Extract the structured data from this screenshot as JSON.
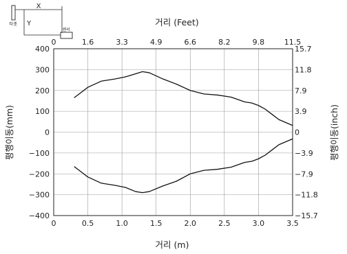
{
  "chart_data": {
    "type": "line",
    "xlabel_bottom": "거리 (m)",
    "xlabel_top": "거리 (Feet)",
    "ylabel_left": "평행이동(mm)",
    "ylabel_right": "평행이동(inch)",
    "xlim": [
      0,
      3.5
    ],
    "ylim": [
      -400,
      400
    ],
    "grid": true,
    "x_ticks_bottom": [
      "0",
      "0.5",
      "1.0",
      "1.5",
      "2.0",
      "2.5",
      "3.0",
      "3.5"
    ],
    "x_ticks_top": [
      "0",
      "1.6",
      "3.3",
      "4.9",
      "6.6",
      "8.2",
      "9.8",
      "11.5"
    ],
    "y_ticks_left": [
      "400",
      "300",
      "200",
      "100",
      "0",
      "−100",
      "−200",
      "−300",
      "−400"
    ],
    "y_ticks_right": [
      "15.7",
      "11.8",
      "7.9",
      "3.9",
      "0",
      "−3.9",
      "−7.9",
      "−11.8",
      "−15.7"
    ],
    "x_tick_values": [
      0,
      0.5,
      1.0,
      1.5,
      2.0,
      2.5,
      3.0,
      3.5
    ],
    "y_tick_values": [
      400,
      300,
      200,
      100,
      0,
      -100,
      -200,
      -300,
      -400
    ],
    "series": [
      {
        "x": [
          0.3,
          0.5,
          0.7,
          0.9,
          1.05,
          1.2,
          1.3,
          1.4,
          1.6,
          1.8,
          2.0,
          2.2,
          2.4,
          2.6,
          2.8,
          2.9,
          3.0,
          3.1,
          3.2,
          3.3,
          3.5
        ],
        "y": [
          165,
          215,
          245,
          255,
          265,
          280,
          290,
          285,
          255,
          230,
          200,
          183,
          178,
          168,
          145,
          140,
          128,
          110,
          85,
          60,
          32
        ]
      },
      {
        "x": [
          0.3,
          0.5,
          0.7,
          0.9,
          1.05,
          1.2,
          1.3,
          1.4,
          1.6,
          1.8,
          2.0,
          2.2,
          2.4,
          2.6,
          2.8,
          2.9,
          3.0,
          3.1,
          3.2,
          3.3,
          3.5
        ],
        "y": [
          -165,
          -215,
          -245,
          -255,
          -265,
          -285,
          -290,
          -285,
          -258,
          -235,
          -200,
          -183,
          -178,
          -168,
          -145,
          -140,
          -128,
          -110,
          -85,
          -60,
          -32
        ]
      }
    ],
    "inset": {
      "x_label": "X",
      "y_label": "Y",
      "target_label": "타겟",
      "sensor_label": "센서"
    }
  }
}
